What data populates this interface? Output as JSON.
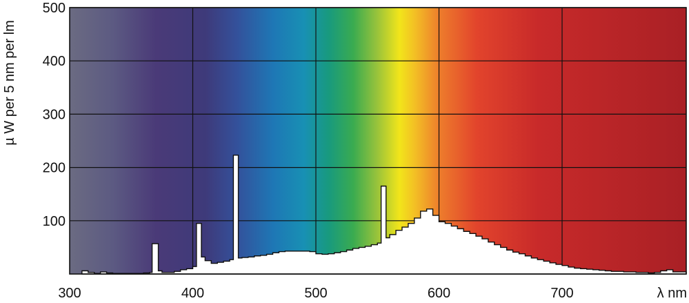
{
  "chart_data": {
    "type": "area",
    "xlabel": "λ nm",
    "ylabel": "µ W per 5 nm per lm",
    "xlim": [
      300,
      1000
    ],
    "ylim": [
      0,
      500
    ],
    "xticks": [
      300,
      400,
      500,
      600,
      700
    ],
    "xtick_labels": [
      "300",
      "400",
      "500",
      "600",
      "700"
    ],
    "yticks": [
      100,
      200,
      300,
      400,
      500
    ],
    "ytick_labels": [
      "100",
      "200",
      "300",
      "400",
      "500"
    ],
    "grid": true,
    "background": "visible spectrum color gradient",
    "fill_color": "#ffffff",
    "series": [
      {
        "x": [
          310,
          315,
          320,
          325,
          330,
          335,
          340,
          345,
          350,
          355,
          360,
          365,
          367,
          370,
          372,
          375,
          380,
          385,
          390,
          395,
          400,
          403,
          405,
          407,
          410,
          415,
          420,
          425,
          430,
          433,
          435,
          437,
          440,
          445,
          450,
          455,
          460,
          465,
          470,
          475,
          480,
          485,
          490,
          495,
          500,
          505,
          510,
          515,
          520,
          525,
          530,
          535,
          540,
          545,
          550,
          553,
          555,
          557,
          560,
          565,
          570,
          575,
          580,
          585,
          590,
          595,
          600,
          605,
          610,
          615,
          620,
          625,
          630,
          635,
          640,
          645,
          650,
          655,
          660,
          665,
          670,
          675,
          680,
          685,
          690,
          695,
          700,
          705,
          710,
          715,
          720,
          725,
          730,
          735,
          740,
          745,
          750,
          755,
          760,
          765,
          770,
          775,
          780,
          785,
          790
        ],
        "y": [
          6,
          3,
          1,
          4,
          2,
          1,
          1,
          1,
          1,
          1,
          2,
          3,
          57,
          57,
          6,
          3,
          3,
          5,
          8,
          10,
          14,
          95,
          95,
          32,
          25,
          20,
          22,
          24,
          27,
          223,
          223,
          30,
          31,
          32,
          34,
          35,
          37,
          40,
          42,
          43,
          43,
          43,
          43,
          42,
          38,
          37,
          38,
          40,
          42,
          45,
          48,
          50,
          52,
          55,
          58,
          165,
          165,
          68,
          74,
          82,
          88,
          95,
          105,
          118,
          122,
          110,
          98,
          95,
          90,
          85,
          80,
          76,
          71,
          66,
          60,
          55,
          50,
          45,
          41,
          38,
          34,
          30,
          27,
          24,
          21,
          18,
          16,
          13,
          11,
          10,
          9,
          8,
          7,
          6,
          5,
          5,
          4,
          4,
          3,
          3,
          2,
          3,
          6,
          8,
          4
        ]
      }
    ]
  }
}
